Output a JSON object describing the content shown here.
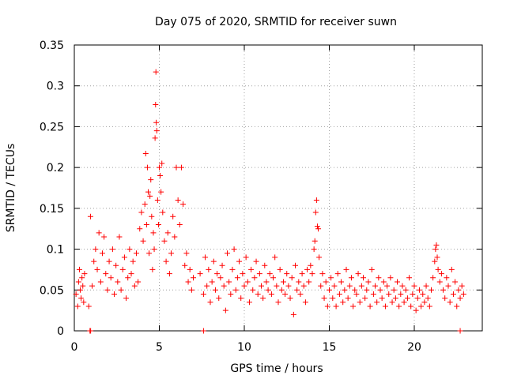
{
  "chart_data": {
    "type": "scatter",
    "title": "Day 075 of 2020, SRMTID for receiver suwn",
    "xlabel": "GPS time / hours",
    "ylabel": "SRMTID / TECUs",
    "xlim": [
      0,
      24
    ],
    "ylim": [
      0,
      0.35
    ],
    "x_ticks": [
      0,
      5,
      10,
      15,
      20
    ],
    "x_tick_labels": [
      "0",
      "5",
      "10",
      "15",
      "20"
    ],
    "y_ticks": [
      0,
      0.05,
      0.1,
      0.15,
      0.2,
      0.25,
      0.3,
      0.35
    ],
    "y_tick_labels": [
      "0",
      "0.05",
      "0.1",
      "0.15",
      "0.2",
      "0.25",
      "0.3",
      "0.35"
    ],
    "grid": true,
    "marker": "+",
    "series_color": "#ff0000",
    "series": [
      {
        "name": "SRMTID",
        "points": [
          [
            0.1,
            0.045
          ],
          [
            0.2,
            0.03
          ],
          [
            0.25,
            0.06
          ],
          [
            0.3,
            0.075
          ],
          [
            0.35,
            0.05
          ],
          [
            0.4,
            0.04
          ],
          [
            0.45,
            0.065
          ],
          [
            0.5,
            0.055
          ],
          [
            0.55,
            0.035
          ],
          [
            0.6,
            0.07
          ],
          [
            0.85,
            0.03
          ],
          [
            0.95,
            0.14
          ],
          [
            1.05,
            0.055
          ],
          [
            1.15,
            0.085
          ],
          [
            1.25,
            0.1
          ],
          [
            1.35,
            0.075
          ],
          [
            1.45,
            0.12
          ],
          [
            1.55,
            0.06
          ],
          [
            1.65,
            0.095
          ],
          [
            1.75,
            0.115
          ],
          [
            1.85,
            0.07
          ],
          [
            1.95,
            0.05
          ],
          [
            2.05,
            0.085
          ],
          [
            2.15,
            0.065
          ],
          [
            2.25,
            0.1
          ],
          [
            2.35,
            0.045
          ],
          [
            2.45,
            0.08
          ],
          [
            2.55,
            0.06
          ],
          [
            2.65,
            0.115
          ],
          [
            2.75,
            0.05
          ],
          [
            2.85,
            0.075
          ],
          [
            2.95,
            0.09
          ],
          [
            3.05,
            0.04
          ],
          [
            3.15,
            0.065
          ],
          [
            3.25,
            0.1
          ],
          [
            3.35,
            0.07
          ],
          [
            3.45,
            0.085
          ],
          [
            3.55,
            0.055
          ],
          [
            3.65,
            0.095
          ],
          [
            3.75,
            0.06
          ],
          [
            3.85,
            0.125
          ],
          [
            3.95,
            0.145
          ],
          [
            4.05,
            0.11
          ],
          [
            4.15,
            0.155
          ],
          [
            4.2,
            0.217
          ],
          [
            4.25,
            0.13
          ],
          [
            4.3,
            0.2
          ],
          [
            4.35,
            0.17
          ],
          [
            4.4,
            0.095
          ],
          [
            4.45,
            0.165
          ],
          [
            4.5,
            0.185
          ],
          [
            4.55,
            0.14
          ],
          [
            4.6,
            0.075
          ],
          [
            4.65,
            0.12
          ],
          [
            4.7,
            0.1
          ],
          [
            4.75,
            0.236
          ],
          [
            4.78,
            0.277
          ],
          [
            4.8,
            0.317
          ],
          [
            4.82,
            0.255
          ],
          [
            4.85,
            0.245
          ],
          [
            4.9,
            0.16
          ],
          [
            4.95,
            0.13
          ],
          [
            5.0,
            0.2
          ],
          [
            5.05,
            0.19
          ],
          [
            5.1,
            0.17
          ],
          [
            5.15,
            0.205
          ],
          [
            5.2,
            0.145
          ],
          [
            5.3,
            0.11
          ],
          [
            5.4,
            0.085
          ],
          [
            5.5,
            0.12
          ],
          [
            5.6,
            0.07
          ],
          [
            5.7,
            0.095
          ],
          [
            5.8,
            0.14
          ],
          [
            5.9,
            0.115
          ],
          [
            6.0,
            0.2
          ],
          [
            6.1,
            0.16
          ],
          [
            6.2,
            0.13
          ],
          [
            6.3,
            0.2
          ],
          [
            6.4,
            0.155
          ],
          [
            6.5,
            0.08
          ],
          [
            6.6,
            0.095
          ],
          [
            6.7,
            0.06
          ],
          [
            6.8,
            0.075
          ],
          [
            6.9,
            0.05
          ],
          [
            7.0,
            0.065
          ],
          [
            7.4,
            0.07
          ],
          [
            7.6,
            0.045
          ],
          [
            7.7,
            0.09
          ],
          [
            7.8,
            0.055
          ],
          [
            7.9,
            0.075
          ],
          [
            8.0,
            0.035
          ],
          [
            8.1,
            0.06
          ],
          [
            8.2,
            0.085
          ],
          [
            8.3,
            0.05
          ],
          [
            8.4,
            0.07
          ],
          [
            8.5,
            0.04
          ],
          [
            8.6,
            0.065
          ],
          [
            8.7,
            0.08
          ],
          [
            8.8,
            0.055
          ],
          [
            8.9,
            0.025
          ],
          [
            9.0,
            0.095
          ],
          [
            9.1,
            0.06
          ],
          [
            9.2,
            0.045
          ],
          [
            9.3,
            0.075
          ],
          [
            9.4,
            0.1
          ],
          [
            9.5,
            0.05
          ],
          [
            9.6,
            0.065
          ],
          [
            9.7,
            0.085
          ],
          [
            9.8,
            0.04
          ],
          [
            9.9,
            0.07
          ],
          [
            10.0,
            0.055
          ],
          [
            10.1,
            0.09
          ],
          [
            10.2,
            0.06
          ],
          [
            10.3,
            0.035
          ],
          [
            10.4,
            0.075
          ],
          [
            10.5,
            0.05
          ],
          [
            10.6,
            0.065
          ],
          [
            10.7,
            0.085
          ],
          [
            10.8,
            0.045
          ],
          [
            10.9,
            0.07
          ],
          [
            11.0,
            0.055
          ],
          [
            11.1,
            0.04
          ],
          [
            11.2,
            0.08
          ],
          [
            11.3,
            0.06
          ],
          [
            11.4,
            0.05
          ],
          [
            11.5,
            0.07
          ],
          [
            11.6,
            0.045
          ],
          [
            11.7,
            0.065
          ],
          [
            11.8,
            0.09
          ],
          [
            11.9,
            0.055
          ],
          [
            12.0,
            0.035
          ],
          [
            12.1,
            0.075
          ],
          [
            12.2,
            0.05
          ],
          [
            12.3,
            0.06
          ],
          [
            12.4,
            0.045
          ],
          [
            12.5,
            0.07
          ],
          [
            12.6,
            0.055
          ],
          [
            12.7,
            0.04
          ],
          [
            12.8,
            0.065
          ],
          [
            12.9,
            0.02
          ],
          [
            13.0,
            0.08
          ],
          [
            13.1,
            0.05
          ],
          [
            13.2,
            0.06
          ],
          [
            13.3,
            0.045
          ],
          [
            13.4,
            0.07
          ],
          [
            13.5,
            0.055
          ],
          [
            13.6,
            0.035
          ],
          [
            13.7,
            0.075
          ],
          [
            13.8,
            0.06
          ],
          [
            13.9,
            0.08
          ],
          [
            14.0,
            0.07
          ],
          [
            14.1,
            0.1
          ],
          [
            14.15,
            0.11
          ],
          [
            14.2,
            0.145
          ],
          [
            14.25,
            0.16
          ],
          [
            14.3,
            0.128
          ],
          [
            14.35,
            0.125
          ],
          [
            14.4,
            0.09
          ],
          [
            14.5,
            0.055
          ],
          [
            14.6,
            0.07
          ],
          [
            14.7,
            0.04
          ],
          [
            14.8,
            0.06
          ],
          [
            14.9,
            0.03
          ],
          [
            15.0,
            0.05
          ],
          [
            15.1,
            0.065
          ],
          [
            15.2,
            0.04
          ],
          [
            15.3,
            0.055
          ],
          [
            15.4,
            0.03
          ],
          [
            15.5,
            0.07
          ],
          [
            15.6,
            0.045
          ],
          [
            15.7,
            0.06
          ],
          [
            15.8,
            0.035
          ],
          [
            15.9,
            0.05
          ],
          [
            16.0,
            0.075
          ],
          [
            16.1,
            0.04
          ],
          [
            16.2,
            0.055
          ],
          [
            16.3,
            0.065
          ],
          [
            16.4,
            0.03
          ],
          [
            16.5,
            0.05
          ],
          [
            16.6,
            0.045
          ],
          [
            16.7,
            0.07
          ],
          [
            16.8,
            0.035
          ],
          [
            16.9,
            0.055
          ],
          [
            17.0,
            0.065
          ],
          [
            17.1,
            0.04
          ],
          [
            17.2,
            0.05
          ],
          [
            17.3,
            0.06
          ],
          [
            17.4,
            0.03
          ],
          [
            17.5,
            0.075
          ],
          [
            17.6,
            0.045
          ],
          [
            17.7,
            0.055
          ],
          [
            17.8,
            0.035
          ],
          [
            17.9,
            0.065
          ],
          [
            18.0,
            0.05
          ],
          [
            18.1,
            0.04
          ],
          [
            18.2,
            0.06
          ],
          [
            18.3,
            0.03
          ],
          [
            18.4,
            0.055
          ],
          [
            18.5,
            0.045
          ],
          [
            18.6,
            0.065
          ],
          [
            18.7,
            0.035
          ],
          [
            18.8,
            0.05
          ],
          [
            18.9,
            0.04
          ],
          [
            19.0,
            0.06
          ],
          [
            19.1,
            0.03
          ],
          [
            19.2,
            0.045
          ],
          [
            19.3,
            0.055
          ],
          [
            19.4,
            0.035
          ],
          [
            19.5,
            0.05
          ],
          [
            19.6,
            0.04
          ],
          [
            19.7,
            0.065
          ],
          [
            19.8,
            0.03
          ],
          [
            19.9,
            0.045
          ],
          [
            20.0,
            0.055
          ],
          [
            20.1,
            0.025
          ],
          [
            20.2,
            0.04
          ],
          [
            20.3,
            0.05
          ],
          [
            20.4,
            0.03
          ],
          [
            20.5,
            0.045
          ],
          [
            20.6,
            0.035
          ],
          [
            20.7,
            0.055
          ],
          [
            20.8,
            0.04
          ],
          [
            20.9,
            0.03
          ],
          [
            21.0,
            0.05
          ],
          [
            21.1,
            0.065
          ],
          [
            21.2,
            0.085
          ],
          [
            21.25,
            0.1
          ],
          [
            21.3,
            0.105
          ],
          [
            21.35,
            0.09
          ],
          [
            21.4,
            0.075
          ],
          [
            21.5,
            0.06
          ],
          [
            21.6,
            0.07
          ],
          [
            21.7,
            0.05
          ],
          [
            21.8,
            0.04
          ],
          [
            21.9,
            0.065
          ],
          [
            22.0,
            0.055
          ],
          [
            22.1,
            0.035
          ],
          [
            22.2,
            0.075
          ],
          [
            22.3,
            0.045
          ],
          [
            22.4,
            0.06
          ],
          [
            22.5,
            0.03
          ],
          [
            22.6,
            0.05
          ],
          [
            22.7,
            0.04
          ],
          [
            22.8,
            0.055
          ],
          [
            22.9,
            0.045
          ],
          [
            0.92,
            0.0
          ],
          [
            0.96,
            0.0
          ],
          [
            7.6,
            0.0
          ],
          [
            22.7,
            0.0
          ]
        ]
      }
    ]
  }
}
